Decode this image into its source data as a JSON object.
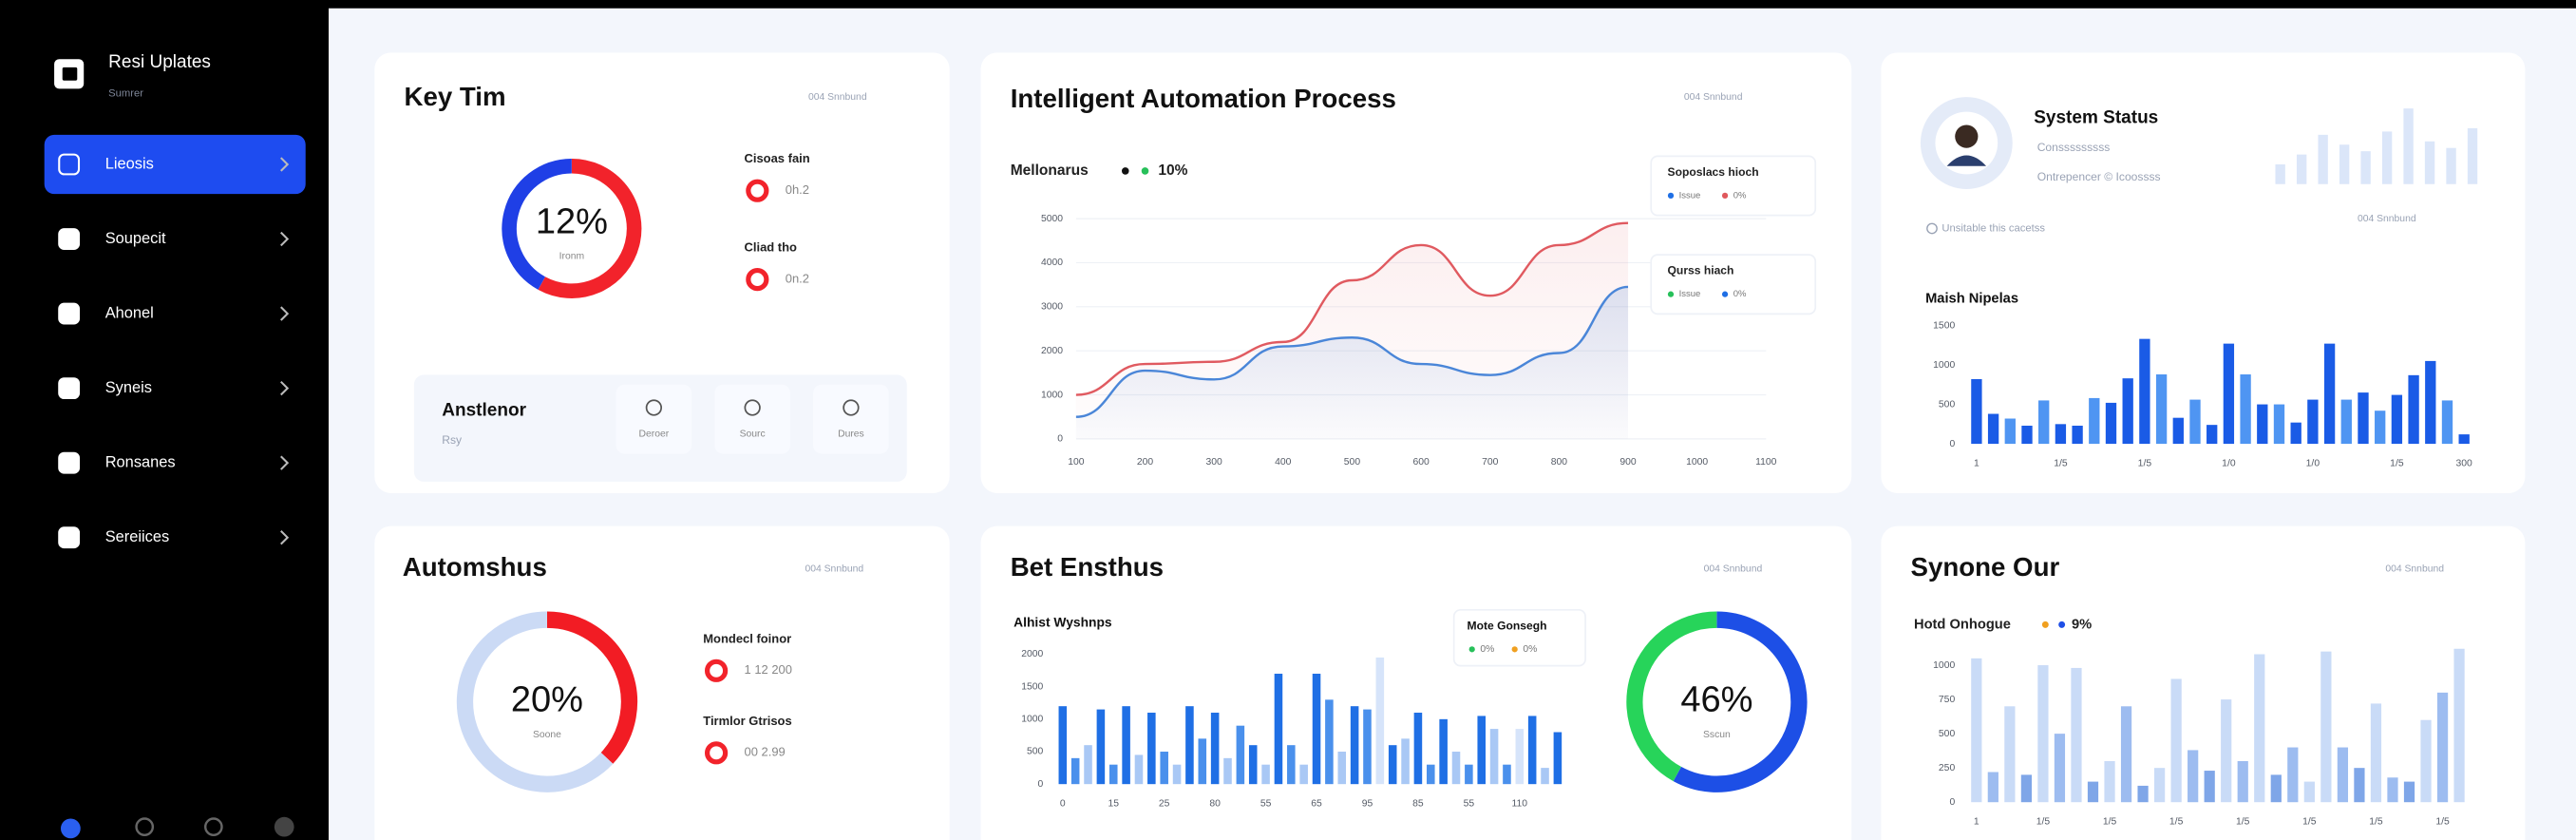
{
  "sidebar": {
    "brand": {
      "title": "Resi Uplates",
      "subtitle": "Sumrer"
    },
    "nav": [
      "Lieosis",
      "Soupecit",
      "Ahonel",
      "Syneis",
      "Ronsanes",
      "Sereiices"
    ],
    "active": 0
  },
  "cards": {
    "key": {
      "title": "Key Tim",
      "meta": "004 Snnbund",
      "donut": {
        "type": "donut",
        "center_label": "12%",
        "center_sub": "Ironm",
        "segments": [
          {
            "value": 58,
            "color": "#f2232b"
          },
          {
            "value": 42,
            "color": "#1f3fe6"
          }
        ]
      },
      "legend": [
        {
          "label": "Cisoas fain",
          "value": "0h.2",
          "color": "#f2232b"
        },
        {
          "label": "Cliad tho",
          "value": "0n.2",
          "color": "#f2232b"
        }
      ],
      "panel": {
        "title": "Anstlenor",
        "subtitle": "Rsy",
        "buttons": [
          "Deroer",
          "Sourc",
          "Dures"
        ]
      }
    },
    "automation": {
      "title": "Intelligent Automation Process",
      "meta": "004 Snnbund",
      "chart": {
        "type": "line",
        "legend_label": "Mellonarus",
        "legend_value": "10%",
        "categories": [
          "100",
          "200",
          "300",
          "400",
          "500",
          "600",
          "700",
          "800",
          "900",
          "1000",
          "1100"
        ],
        "ylim": [
          0,
          5000
        ],
        "yticks": [
          0,
          1000,
          2000,
          3000,
          4000,
          5000
        ],
        "grid": true,
        "series": [
          {
            "color": "#e05a60",
            "values": [
              1000,
              1700,
              1750,
              2200,
              3600,
              4400,
              3250,
              4400,
              4900,
              null,
              null
            ]
          },
          {
            "color": "#4a86d8",
            "values": [
              500,
              1550,
              1350,
              2100,
              2300,
              1700,
              1450,
              1950,
              3450,
              null,
              null
            ]
          }
        ]
      },
      "tooltips": [
        {
          "title": "Soposlacs hioch",
          "items": [
            "Issue",
            "0%"
          ]
        },
        {
          "title": "Qurss hiach",
          "items": [
            "Issue",
            "0%"
          ]
        }
      ]
    },
    "status": {
      "title": "System Status",
      "lines": [
        "Consssssssss",
        "Ontrepencer © Icoossss"
      ],
      "note": "Unsitable this cacetss",
      "meta": "004 Snnbund",
      "chart": {
        "type": "bar",
        "title": "Maish Nipelas",
        "ylim": [
          0,
          1500
        ],
        "yticks": [
          0,
          500,
          1000,
          1500
        ],
        "grid": false,
        "categories": [
          "1",
          null,
          null,
          null,
          null,
          "1/5",
          null,
          null,
          null,
          null,
          "1/5",
          null,
          null,
          null,
          null,
          "1/0",
          null,
          null,
          null,
          null,
          "1/0",
          null,
          null,
          null,
          null,
          "1/5",
          null,
          null,
          null,
          "300"
        ],
        "values": [
          820,
          380,
          320,
          230,
          550,
          250,
          230,
          580,
          520,
          830,
          1330,
          880,
          330,
          560,
          240,
          1270,
          880,
          500,
          500,
          270,
          560,
          1270,
          560,
          650,
          420,
          620,
          870,
          1050,
          550,
          120
        ],
        "colors": [
          "#1a5be6",
          "#1a5be6",
          "#4f95f2",
          "#1a5be6",
          "#4f95f2",
          "#1a5be6",
          "#1a5be6",
          "#4f95f2",
          "#1a5be6",
          "#1a5be6",
          "#1a5be6",
          "#4f95f2",
          "#1a5be6",
          "#4f95f2",
          "#1a5be6",
          "#1a5be6",
          "#4f95f2",
          "#1a5be6",
          "#4f95f2",
          "#1a5be6",
          "#1a5be6",
          "#1a5be6",
          "#4f95f2",
          "#1a5be6",
          "#4f95f2",
          "#1a5be6",
          "#1a5be6",
          "#1a5be6",
          "#4f95f2",
          "#1a5be6"
        ]
      }
    },
    "autom": {
      "title": "Automshus",
      "meta": "004 Snnbund",
      "donut": {
        "type": "donut",
        "center_label": "20%",
        "center_sub": "Soone",
        "segments": [
          {
            "value": 37,
            "color": "#f21c24"
          },
          {
            "value": 63,
            "color": "#cbdaf5"
          }
        ]
      },
      "legend": [
        {
          "label": "Mondecl foinor",
          "value": "1 12 200",
          "color": "#f2232b"
        },
        {
          "label": "Tirmlor Gtrisos",
          "value": "00 2.99",
          "color": "#f2232b"
        }
      ]
    },
    "bet": {
      "title": "Bet Ensthus",
      "meta": "004 Snnbund",
      "chart": {
        "type": "bar",
        "title": "Alhist Wyshnps",
        "ylim": [
          0,
          2000
        ],
        "yticks": [
          0,
          500,
          1000,
          1500,
          2000
        ],
        "grid": false,
        "categories": [
          "0",
          null,
          null,
          null,
          "15",
          null,
          null,
          null,
          "25",
          null,
          null,
          null,
          "80",
          null,
          null,
          null,
          "55",
          null,
          null,
          null,
          "65",
          null,
          null,
          null,
          "95",
          null,
          null,
          null,
          "85",
          null,
          null,
          null,
          "55",
          null,
          null,
          null,
          "110",
          null,
          null,
          null
        ],
        "values": [
          1200,
          400,
          600,
          1150,
          300,
          1200,
          450,
          1100,
          500,
          300,
          1200,
          700,
          1100,
          400,
          900,
          600,
          300,
          1700,
          600,
          300,
          1700,
          1300,
          500,
          1200,
          1150,
          1950,
          600,
          700,
          1100,
          300,
          1000,
          500,
          300,
          1050,
          850,
          300,
          850,
          1050,
          250,
          800
        ],
        "colors": [
          "#1f6fe5",
          "#4a90ec",
          "#a9c8f5",
          "#1f6fe5",
          "#4a90ec",
          "#1f6fe5",
          "#a9c8f5",
          "#1f6fe5",
          "#4a90ec",
          "#a9c8f5",
          "#1f6fe5",
          "#4a90ec",
          "#1f6fe5",
          "#a9c8f5",
          "#4a90ec",
          "#1f6fe5",
          "#a9c8f5",
          "#1f6fe5",
          "#4a90ec",
          "#a9c8f5",
          "#1f6fe5",
          "#4a90ec",
          "#a9c8f5",
          "#1f6fe5",
          "#4a90ec",
          "#d6e4fa",
          "#1f6fe5",
          "#a9c8f5",
          "#1f6fe5",
          "#4a90ec",
          "#1f6fe5",
          "#a9c8f5",
          "#4a90ec",
          "#1f6fe5",
          "#a9c8f5",
          "#4a90ec",
          "#d6e4fa",
          "#1f6fe5",
          "#a9c8f5",
          "#1f6fe5"
        ]
      },
      "tooltip": {
        "title": "Mote Gonsegh",
        "items": [
          "0%",
          "0%"
        ]
      },
      "donut": {
        "type": "donut",
        "center_label": "46%",
        "center_sub": "Sscun",
        "segments": [
          {
            "value": 58,
            "color": "#1d4fe6"
          },
          {
            "value": 42,
            "color": "#27d45a"
          }
        ]
      }
    },
    "synone": {
      "title": "Synone Our",
      "meta": "004 Snnbund",
      "chart": {
        "type": "bar",
        "legend_label": "Hotd Onhogue",
        "legend_value": "9%",
        "ylim": [
          0,
          1200
        ],
        "yticks": [
          0,
          250,
          500,
          750,
          1000
        ],
        "grid": false,
        "categories": [
          "1",
          null,
          null,
          null,
          "1/5",
          null,
          null,
          null,
          "1/5",
          null,
          null,
          null,
          "1/5",
          null,
          null,
          null,
          "1/5",
          null,
          null,
          null,
          "1/5",
          null,
          null,
          null,
          "1/5",
          null,
          null,
          null,
          "1/5",
          null
        ],
        "values": [
          1050,
          220,
          700,
          200,
          1000,
          500,
          980,
          150,
          300,
          700,
          120,
          250,
          900,
          380,
          230,
          750,
          300,
          1080,
          200,
          400,
          150,
          1100,
          400,
          250,
          720,
          180,
          150,
          600,
          800,
          1120
        ],
        "colors": [
          "#c9dbf7",
          "#9dbcf0",
          "#c9dbf7",
          "#7fa6e8",
          "#c9dbf7",
          "#9dbcf0",
          "#c9dbf7",
          "#7fa6e8",
          "#c9dbf7",
          "#9dbcf0",
          "#7fa6e8",
          "#c9dbf7",
          "#c9dbf7",
          "#9dbcf0",
          "#7fa6e8",
          "#c9dbf7",
          "#9dbcf0",
          "#c9dbf7",
          "#7fa6e8",
          "#9dbcf0",
          "#c9dbf7",
          "#c9dbf7",
          "#9dbcf0",
          "#7fa6e8",
          "#c9dbf7",
          "#9dbcf0",
          "#7fa6e8",
          "#c9dbf7",
          "#9dbcf0",
          "#c9dbf7"
        ]
      }
    }
  }
}
